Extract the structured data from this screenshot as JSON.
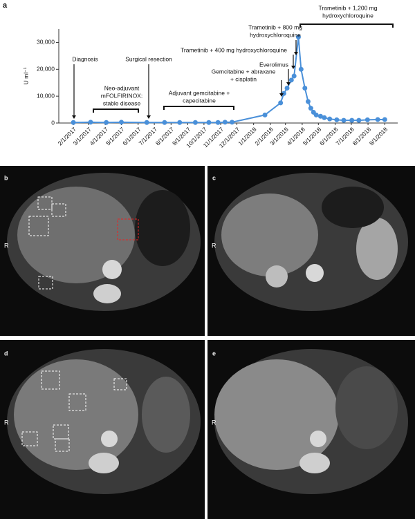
{
  "panel_labels": [
    "a",
    "b",
    "c",
    "d",
    "e"
  ],
  "image_side_labels": [
    "R",
    "R",
    "R",
    "R"
  ],
  "chart_data": {
    "type": "line",
    "y_label": "U ml⁻¹",
    "x": [
      "2/1/2017",
      "3/5/2017",
      "4/3/2017",
      "5/1/2017",
      "6/17/2017",
      "7/20/2017",
      "8/17/2017",
      "9/15/2017",
      "10/10/2017",
      "10/27/2017",
      "11/9/2017",
      "11/22/2017",
      "1/22/2018",
      "2/20/2018",
      "2/26/2018",
      "3/4/2018",
      "3/12/2018",
      "3/17/2018",
      "3/25/2018",
      "3/30/2018",
      "4/6/2018",
      "4/12/2018",
      "4/17/2018",
      "4/22/2018",
      "4/27/2018",
      "5/5/2018",
      "5/12/2018",
      "5/22/2018",
      "6/4/2018",
      "6/17/2018",
      "7/2/2018",
      "7/15/2018",
      "7/31/2018",
      "8/19/2018",
      "9/1/2018"
    ],
    "series": [
      {
        "color": "#4a90d9",
        "values": [
          200,
          300,
          200,
          300,
          200,
          200,
          200,
          200,
          200,
          200,
          300,
          300,
          3000,
          7500,
          11000,
          13000,
          16000,
          17500,
          32000,
          20000,
          13000,
          8000,
          5500,
          4000,
          3000,
          2500,
          2000,
          1500,
          1200,
          1000,
          1000,
          1000,
          1200,
          1300,
          1300
        ]
      }
    ],
    "xlim": [
      "1/5/2017",
      "9/25/2018"
    ],
    "xticks": [
      "2/1/2017",
      "3/1/2017",
      "4/1/2017",
      "5/1/2017",
      "6/1/2017",
      "7/1/2017",
      "8/1/2017",
      "9/1/2017",
      "10/1/2017",
      "11/1/2017",
      "12/1/2017",
      "1/1/2018",
      "2/1/2018",
      "3/1/2018",
      "4/1/2018",
      "5/1/2018",
      "6/1/2018",
      "7/1/2018",
      "8/1/2018",
      "9/1/2018"
    ],
    "ylim": [
      0,
      35000
    ],
    "yticks": [
      0,
      {
        "value": 10000,
        "label": "10,000"
      },
      {
        "value": 20000,
        "label": "20,000"
      },
      {
        "value": 30000,
        "label": "30,000"
      }
    ],
    "annotations": [
      [
        "Diagnosis"
      ],
      [
        "Neo-adjuvant",
        "mFOLFIRINOX:",
        "stable disease"
      ],
      [
        "Surgical resection"
      ],
      [
        "Adjuvant gemcitabine +",
        "capecitabine"
      ],
      [
        "Gemcitabine + abraxane",
        "+ cisplatin"
      ],
      [
        "Everolimus"
      ],
      [
        "Trametinib + 400 mg hydroxychloroquine"
      ],
      [
        "Trametinib + 800 mg",
        "hydroxychloroquine"
      ],
      [
        "Trametinib + 1,200 mg",
        "hydroxychloroquine"
      ]
    ]
  }
}
